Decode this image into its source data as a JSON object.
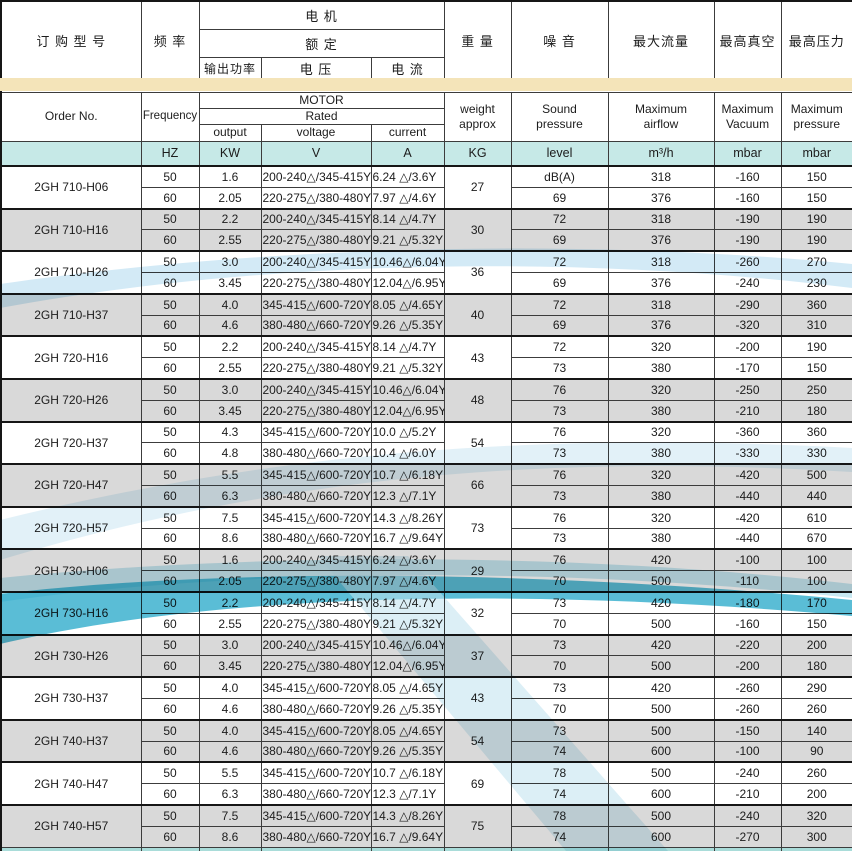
{
  "document": {
    "type": "blower-specification-table"
  },
  "colors": {
    "band_yellow": "#f4e4b9",
    "units_teal": "#c6e9e7",
    "row_gray": "#d9d9d9",
    "watermark_cyan": "#1ba3c6",
    "watermark_light": "#bfe2ef"
  },
  "header": {
    "order_no": {
      "cn": "订 购 型 号",
      "en": "Order No."
    },
    "frequency": {
      "cn": "频  率",
      "en": "Frequency",
      "unit": "HZ"
    },
    "motor": {
      "cn": "电  机",
      "en": "MOTOR"
    },
    "rated": {
      "cn": "额  定",
      "en": "Rated"
    },
    "output": {
      "cn": "输出功率",
      "en": "output",
      "unit": "KW"
    },
    "voltage": {
      "cn": "电  压",
      "en": "voltage",
      "unit": "V"
    },
    "current": {
      "cn": "电  流",
      "en": "current",
      "unit": "A"
    },
    "weight": {
      "cn": "重  量",
      "en": "weight\napprox",
      "unit": "KG"
    },
    "sound": {
      "cn": "噪  音",
      "en": "Sound\npressure",
      "unit": "level"
    },
    "airflow": {
      "cn": "最大流量",
      "en": "Maximum\nairflow",
      "unit": "m³/h"
    },
    "vacuum": {
      "cn": "最高真空",
      "en": "Maximum\nVacuum",
      "unit": "mbar"
    },
    "pressure": {
      "cn": "最高压力",
      "en": "Maximum\npressure",
      "unit": "mbar"
    }
  },
  "table": {
    "rows": [
      {
        "model": "2GH 710-H06",
        "weight": "27",
        "shaded": false,
        "freq_rows": [
          {
            "hz": "50",
            "kw": "1.6",
            "voltage": "200-240△/345-415Y",
            "current": "6.24 △/3.6Y",
            "sound": "dB(A)",
            "airflow": "318",
            "vacuum": "-160",
            "pressure": "150"
          },
          {
            "hz": "60",
            "kw": "2.05",
            "voltage": "220-275△/380-480Y",
            "current": "7.97 △/4.6Y",
            "sound": "69",
            "airflow": "376",
            "vacuum": "-160",
            "pressure": "150"
          }
        ]
      },
      {
        "model": "2GH 710-H16",
        "weight": "30",
        "shaded": true,
        "freq_rows": [
          {
            "hz": "50",
            "kw": "2.2",
            "voltage": "200-240△/345-415Y",
            "current": "8.14 △/4.7Y",
            "sound": "72",
            "airflow": "318",
            "vacuum": "-190",
            "pressure": "190"
          },
          {
            "hz": "60",
            "kw": "2.55",
            "voltage": "220-275△/380-480Y",
            "current": "9.21 △/5.32Y",
            "sound": "69",
            "airflow": "376",
            "vacuum": "-190",
            "pressure": "190"
          }
        ]
      },
      {
        "model": "2GH 710-H26",
        "weight": "36",
        "shaded": false,
        "freq_rows": [
          {
            "hz": "50",
            "kw": "3.0",
            "voltage": "200-240△/345-415Y",
            "current": "10.46△/6.04Y",
            "sound": "72",
            "airflow": "318",
            "vacuum": "-260",
            "pressure": "270"
          },
          {
            "hz": "60",
            "kw": "3.45",
            "voltage": "220-275△/380-480Y",
            "current": "12.04△/6.95Y",
            "sound": "69",
            "airflow": "376",
            "vacuum": "-240",
            "pressure": "230"
          }
        ]
      },
      {
        "model": "2GH 710-H37",
        "weight": "40",
        "shaded": true,
        "freq_rows": [
          {
            "hz": "50",
            "kw": "4.0",
            "voltage": "345-415△/600-720Y",
            "current": "8.05 △/4.65Y",
            "sound": "72",
            "airflow": "318",
            "vacuum": "-290",
            "pressure": "360"
          },
          {
            "hz": "60",
            "kw": "4.6",
            "voltage": "380-480△/660-720Y",
            "current": "9.26 △/5.35Y",
            "sound": "69",
            "airflow": "376",
            "vacuum": "-320",
            "pressure": "310"
          }
        ]
      },
      {
        "model": "2GH 720-H16",
        "weight": "43",
        "shaded": false,
        "freq_rows": [
          {
            "hz": "50",
            "kw": "2.2",
            "voltage": "200-240△/345-415Y",
            "current": "8.14 △/4.7Y",
            "sound": "72",
            "airflow": "320",
            "vacuum": "-200",
            "pressure": "190"
          },
          {
            "hz": "60",
            "kw": "2.55",
            "voltage": "220-275△/380-480Y",
            "current": "9.21 △/5.32Y",
            "sound": "73",
            "airflow": "380",
            "vacuum": "-170",
            "pressure": "150"
          }
        ]
      },
      {
        "model": "2GH 720-H26",
        "weight": "48",
        "shaded": true,
        "freq_rows": [
          {
            "hz": "50",
            "kw": "3.0",
            "voltage": "200-240△/345-415Y",
            "current": "10.46△/6.04Y",
            "sound": "76",
            "airflow": "320",
            "vacuum": "-250",
            "pressure": "250"
          },
          {
            "hz": "60",
            "kw": "3.45",
            "voltage": "220-275△/380-480Y",
            "current": "12.04△/6.95Y",
            "sound": "73",
            "airflow": "380",
            "vacuum": "-210",
            "pressure": "180"
          }
        ]
      },
      {
        "model": "2GH 720-H37",
        "weight": "54",
        "shaded": false,
        "freq_rows": [
          {
            "hz": "50",
            "kw": "4.3",
            "voltage": "345-415△/600-720Y",
            "current": "10.0 △/5.2Y",
            "sound": "76",
            "airflow": "320",
            "vacuum": "-360",
            "pressure": "360"
          },
          {
            "hz": "60",
            "kw": "4.8",
            "voltage": "380-480△/660-720Y",
            "current": "10.4 △/6.0Y",
            "sound": "73",
            "airflow": "380",
            "vacuum": "-330",
            "pressure": "330"
          }
        ]
      },
      {
        "model": "2GH 720-H47",
        "weight": "66",
        "shaded": true,
        "freq_rows": [
          {
            "hz": "50",
            "kw": "5.5",
            "voltage": "345-415△/600-720Y",
            "current": "10.7 △/6.18Y",
            "sound": "76",
            "airflow": "320",
            "vacuum": "-420",
            "pressure": "500"
          },
          {
            "hz": "60",
            "kw": "6.3",
            "voltage": "380-480△/660-720Y",
            "current": "12.3 △/7.1Y",
            "sound": "73",
            "airflow": "380",
            "vacuum": "-440",
            "pressure": "440"
          }
        ]
      },
      {
        "model": "2GH 720-H57",
        "weight": "73",
        "shaded": false,
        "freq_rows": [
          {
            "hz": "50",
            "kw": "7.5",
            "voltage": "345-415△/600-720Y",
            "current": "14.3 △/8.26Y",
            "sound": "76",
            "airflow": "320",
            "vacuum": "-420",
            "pressure": "610"
          },
          {
            "hz": "60",
            "kw": "8.6",
            "voltage": "380-480△/660-720Y",
            "current": "16.7 △/9.64Y",
            "sound": "73",
            "airflow": "380",
            "vacuum": "-440",
            "pressure": "670"
          }
        ]
      },
      {
        "model": "2GH 730-H06",
        "weight": "29",
        "shaded": true,
        "freq_rows": [
          {
            "hz": "50",
            "kw": "1.6",
            "voltage": "200-240△/345-415Y",
            "current": "6.24 △/3.6Y",
            "sound": "76",
            "airflow": "420",
            "vacuum": "-100",
            "pressure": "100"
          },
          {
            "hz": "60",
            "kw": "2.05",
            "voltage": "220-275△/380-480Y",
            "current": "7.97 △/4.6Y",
            "sound": "70",
            "airflow": "500",
            "vacuum": "-110",
            "pressure": "100"
          }
        ]
      },
      {
        "model": "2GH 730-H16",
        "weight": "32",
        "shaded": false,
        "freq_rows": [
          {
            "hz": "50",
            "kw": "2.2",
            "voltage": "200-240△/345-415Y",
            "current": "8.14 △/4.7Y",
            "sound": "73",
            "airflow": "420",
            "vacuum": "-180",
            "pressure": "170"
          },
          {
            "hz": "60",
            "kw": "2.55",
            "voltage": "220-275△/380-480Y",
            "current": "9.21 △/5.32Y",
            "sound": "70",
            "airflow": "500",
            "vacuum": "-160",
            "pressure": "150"
          }
        ]
      },
      {
        "model": "2GH 730-H26",
        "weight": "37",
        "shaded": true,
        "freq_rows": [
          {
            "hz": "50",
            "kw": "3.0",
            "voltage": "200-240△/345-415Y",
            "current": "10.46△/6.04Y",
            "sound": "73",
            "airflow": "420",
            "vacuum": "-220",
            "pressure": "200"
          },
          {
            "hz": "60",
            "kw": "3.45",
            "voltage": "220-275△/380-480Y",
            "current": "12.04△/6.95Y",
            "sound": "70",
            "airflow": "500",
            "vacuum": "-200",
            "pressure": "180"
          }
        ]
      },
      {
        "model": "2GH 730-H37",
        "weight": "43",
        "shaded": false,
        "freq_rows": [
          {
            "hz": "50",
            "kw": "4.0",
            "voltage": "345-415△/600-720Y",
            "current": "8.05 △/4.65Y",
            "sound": "73",
            "airflow": "420",
            "vacuum": "-260",
            "pressure": "290"
          },
          {
            "hz": "60",
            "kw": "4.6",
            "voltage": "380-480△/660-720Y",
            "current": "9.26 △/5.35Y",
            "sound": "70",
            "airflow": "500",
            "vacuum": "-260",
            "pressure": "260"
          }
        ]
      },
      {
        "model": "2GH 740-H37",
        "weight": "54",
        "shaded": true,
        "freq_rows": [
          {
            "hz": "50",
            "kw": "4.0",
            "voltage": "345-415△/600-720Y",
            "current": "8.05 △/4.65Y",
            "sound": "73",
            "airflow": "500",
            "vacuum": "-150",
            "pressure": "140"
          },
          {
            "hz": "60",
            "kw": "4.6",
            "voltage": "380-480△/660-720Y",
            "current": "9.26 △/5.35Y",
            "sound": "74",
            "airflow": "600",
            "vacuum": "-100",
            "pressure": "90"
          }
        ]
      },
      {
        "model": "2GH 740-H47",
        "weight": "69",
        "shaded": false,
        "freq_rows": [
          {
            "hz": "50",
            "kw": "5.5",
            "voltage": "345-415△/600-720Y",
            "current": "10.7 △/6.18Y",
            "sound": "78",
            "airflow": "500",
            "vacuum": "-240",
            "pressure": "260"
          },
          {
            "hz": "60",
            "kw": "6.3",
            "voltage": "380-480△/660-720Y",
            "current": "12.3 △/7.1Y",
            "sound": "74",
            "airflow": "600",
            "vacuum": "-210",
            "pressure": "200"
          }
        ]
      },
      {
        "model": "2GH 740-H57",
        "weight": "75",
        "shaded": true,
        "freq_rows": [
          {
            "hz": "50",
            "kw": "7.5",
            "voltage": "345-415△/600-720Y",
            "current": "14.3 △/8.26Y",
            "sound": "78",
            "airflow": "500",
            "vacuum": "-240",
            "pressure": "320"
          },
          {
            "hz": "60",
            "kw": "8.6",
            "voltage": "380-480△/660-720Y",
            "current": "16.7 △/9.64Y",
            "sound": "74",
            "airflow": "600",
            "vacuum": "-270",
            "pressure": "300"
          }
        ]
      }
    ]
  }
}
